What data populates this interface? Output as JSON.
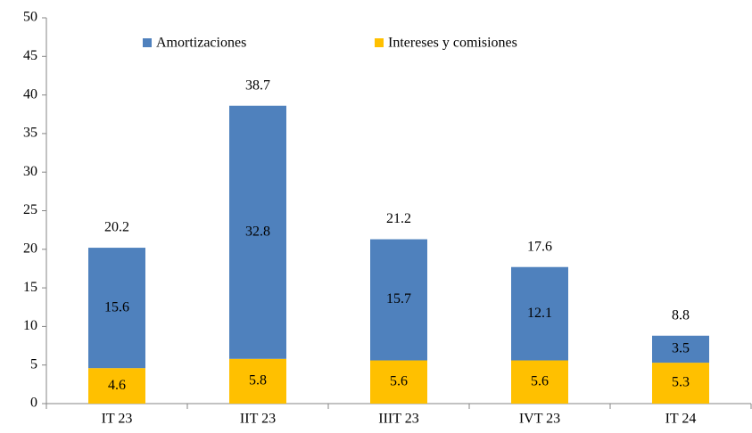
{
  "chart_data": {
    "type": "stacked_bar",
    "categories": [
      "IT 23",
      "IIT 23",
      "IIIT 23",
      "IVT 23",
      "IT 24"
    ],
    "series": [
      {
        "name": "Amortizaciones",
        "color": "#4f81bd",
        "values": [
          15.6,
          32.8,
          15.7,
          12.1,
          3.5
        ]
      },
      {
        "name": "Intereses y comisiones",
        "color": "#ffc000",
        "values": [
          4.6,
          5.8,
          5.6,
          5.6,
          5.3
        ]
      }
    ],
    "totals": [
      20.2,
      38.7,
      21.2,
      17.6,
      8.8
    ],
    "ylim": [
      0,
      50
    ],
    "yticks": [
      0,
      5,
      10,
      15,
      20,
      25,
      30,
      35,
      40,
      45,
      50
    ],
    "grid": false,
    "legend": "top"
  }
}
